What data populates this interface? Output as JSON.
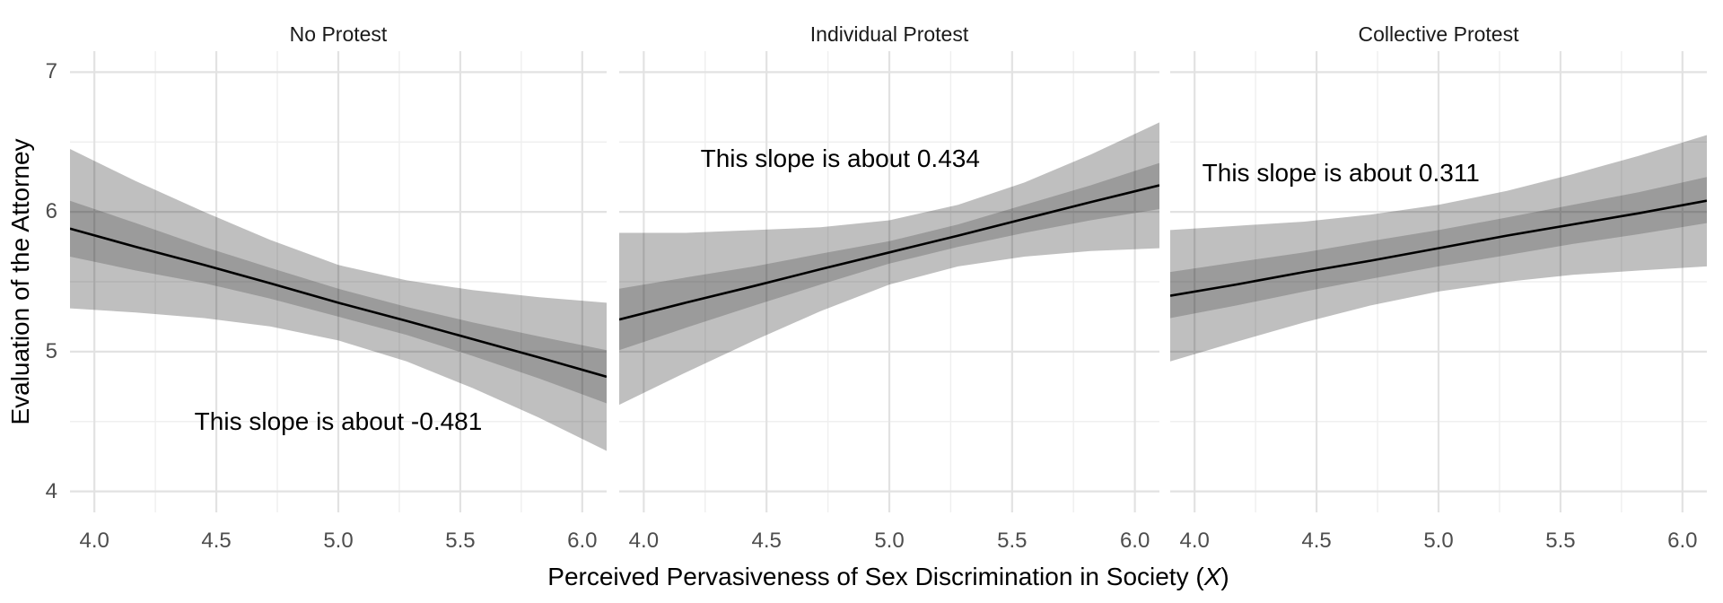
{
  "figure": {
    "background": "#ffffff",
    "colors": {
      "regression_line": "#000000",
      "outer_band": "rgba(0,0,0,0.25)",
      "inner_band": "rgba(0,0,0,0.19)",
      "grid_major": "#e2e2e2",
      "grid_minor": "#efefef",
      "tick_text": "#4d4d4d",
      "strip_text": "#1a1a1a",
      "axis_title_text": "#000000"
    }
  },
  "chart_data": {
    "type": "line",
    "ylabel": "Evaluation of the Attorney",
    "xlabel": "Perceived Pervasiveness of Sex Discrimination in Society (X)",
    "xlabel_prefix": "Perceived Pervasiveness of Sex Discrimination in Society (",
    "xlabel_var": "X",
    "xlabel_suffix": ")",
    "x_range": [
      3.9,
      6.1
    ],
    "y_range": [
      3.85,
      7.15
    ],
    "grid": {
      "x_major": [
        4.0,
        4.5,
        5.0,
        5.5,
        6.0
      ],
      "x_minor": [
        4.25,
        4.75,
        5.25,
        5.75
      ],
      "y_major": [
        4,
        5,
        6,
        7
      ],
      "y_minor": [
        4.5,
        5.5,
        6.5
      ]
    },
    "x_ticks": [
      "4.0",
      "4.5",
      "5.0",
      "5.5",
      "6.0"
    ],
    "x_tick_values": [
      4.0,
      4.5,
      5.0,
      5.5,
      6.0
    ],
    "y_ticks": [
      "7",
      "6",
      "5",
      "4"
    ],
    "y_tick_values": [
      7,
      6,
      5,
      4
    ],
    "panels": [
      {
        "title": "No Protest",
        "slope": -0.481,
        "annotation": {
          "text": "This slope is about -0.481",
          "x": 5.0,
          "y": 4.5
        },
        "x": [
          3.9,
          4.17,
          4.45,
          4.72,
          5.0,
          5.28,
          5.55,
          5.82,
          6.1
        ],
        "line": [
          5.88,
          5.75,
          5.62,
          5.49,
          5.35,
          5.22,
          5.09,
          4.96,
          4.82
        ],
        "inner_upper": [
          6.08,
          5.92,
          5.75,
          5.6,
          5.45,
          5.32,
          5.21,
          5.11,
          5.01
        ],
        "inner_lower": [
          5.68,
          5.58,
          5.49,
          5.38,
          5.25,
          5.12,
          4.97,
          4.81,
          4.63
        ],
        "outer_upper": [
          6.45,
          6.22,
          6.0,
          5.8,
          5.62,
          5.51,
          5.44,
          5.39,
          5.35
        ],
        "outer_lower": [
          5.31,
          5.28,
          5.24,
          5.18,
          5.08,
          4.93,
          4.74,
          4.53,
          4.29
        ]
      },
      {
        "title": "Individual Protest",
        "slope": 0.434,
        "annotation": {
          "text": "This slope is about 0.434",
          "x": 4.8,
          "y": 6.38
        },
        "x": [
          3.9,
          4.17,
          4.45,
          4.72,
          5.0,
          5.28,
          5.55,
          5.82,
          6.1
        ],
        "line": [
          5.23,
          5.35,
          5.47,
          5.59,
          5.71,
          5.83,
          5.95,
          6.07,
          6.19
        ],
        "inner_upper": [
          5.45,
          5.53,
          5.61,
          5.7,
          5.79,
          5.91,
          6.05,
          6.19,
          6.35
        ],
        "inner_lower": [
          5.01,
          5.17,
          5.33,
          5.48,
          5.63,
          5.75,
          5.85,
          5.94,
          6.02
        ],
        "outer_upper": [
          5.85,
          5.85,
          5.87,
          5.89,
          5.94,
          6.05,
          6.21,
          6.41,
          6.64
        ],
        "outer_lower": [
          4.62,
          4.85,
          5.08,
          5.29,
          5.48,
          5.61,
          5.68,
          5.72,
          5.74
        ]
      },
      {
        "title": "Collective Protest",
        "slope": 0.311,
        "annotation": {
          "text": "This slope is about 0.311",
          "x": 4.6,
          "y": 6.28
        },
        "x": [
          3.9,
          4.17,
          4.45,
          4.72,
          5.0,
          5.28,
          5.55,
          5.82,
          6.1
        ],
        "line": [
          5.4,
          5.48,
          5.57,
          5.65,
          5.74,
          5.83,
          5.91,
          5.99,
          6.08
        ],
        "inner_upper": [
          5.57,
          5.64,
          5.71,
          5.79,
          5.87,
          5.96,
          6.05,
          6.14,
          6.25
        ],
        "inner_lower": [
          5.24,
          5.33,
          5.43,
          5.52,
          5.61,
          5.69,
          5.77,
          5.84,
          5.92
        ],
        "outer_upper": [
          5.87,
          5.9,
          5.93,
          5.98,
          6.05,
          6.15,
          6.27,
          6.4,
          6.55
        ],
        "outer_lower": [
          4.93,
          5.07,
          5.21,
          5.33,
          5.43,
          5.5,
          5.55,
          5.58,
          5.61
        ]
      }
    ]
  }
}
